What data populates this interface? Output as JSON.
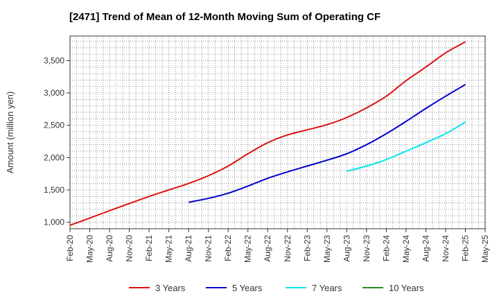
{
  "chart_data": {
    "type": "line",
    "title": "[2471]  Trend of Mean of 12-Month Moving Sum of Operating CF",
    "xlabel": "",
    "ylabel": "Amount (million yen)",
    "ylim": [
      900,
      3880
    ],
    "yticks": [
      1000,
      1500,
      2000,
      2500,
      3000,
      3500
    ],
    "ytick_labels": [
      "1,000",
      "1,500",
      "2,000",
      "2,500",
      "3,000",
      "3,500"
    ],
    "xtick_labels": [
      "Feb-20",
      "May-20",
      "Aug-20",
      "Nov-20",
      "Feb-21",
      "May-21",
      "Aug-21",
      "Nov-21",
      "Feb-22",
      "May-22",
      "Aug-22",
      "Nov-22",
      "Feb-23",
      "May-23",
      "Aug-23",
      "Nov-23",
      "Feb-24",
      "May-24",
      "Aug-24",
      "Nov-24",
      "Feb-25",
      "May-25"
    ],
    "x_unit": "months since Feb-20",
    "xlim": [
      0,
      63
    ],
    "grid": true,
    "legend_position": "bottom",
    "series": [
      {
        "name": "3 Years",
        "color": "#dd1111",
        "x": [
          0,
          3,
          6,
          9,
          12,
          15,
          18,
          21,
          24,
          27,
          30,
          33,
          36,
          39,
          42,
          45,
          48,
          51,
          54,
          57,
          60
        ],
        "values": [
          955,
          1065,
          1180,
          1290,
          1400,
          1500,
          1600,
          1720,
          1870,
          2060,
          2230,
          2350,
          2430,
          2510,
          2620,
          2770,
          2950,
          3190,
          3400,
          3620,
          3790
        ]
      },
      {
        "name": "5 Years",
        "color": "#0000cc",
        "x": [
          18,
          21,
          24,
          27,
          30,
          33,
          36,
          39,
          42,
          45,
          48,
          51,
          54,
          57,
          60
        ],
        "values": [
          1310,
          1370,
          1450,
          1560,
          1680,
          1780,
          1870,
          1960,
          2060,
          2200,
          2370,
          2560,
          2760,
          2950,
          3130
        ]
      },
      {
        "name": "7 Years",
        "color": "#00e5ee",
        "x": [
          42,
          45,
          48,
          51,
          54,
          57,
          60
        ],
        "values": [
          1790,
          1870,
          1970,
          2100,
          2230,
          2370,
          2550
        ]
      },
      {
        "name": "10 Years",
        "color": "#228b22",
        "x": [],
        "values": []
      }
    ]
  }
}
